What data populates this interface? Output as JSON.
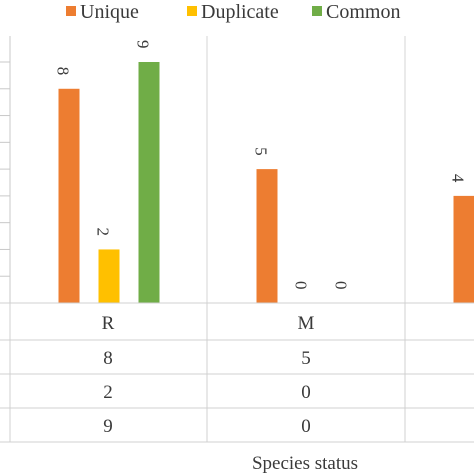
{
  "chart_data": {
    "type": "bar",
    "xlabel": "Species status",
    "categories": [
      "R",
      "M",
      ""
    ],
    "series": [
      {
        "name": "Unique",
        "color": "#ED7D31",
        "values": [
          8,
          5,
          4
        ]
      },
      {
        "name": "Duplicate",
        "color": "#FFC000",
        "values": [
          2,
          0,
          null
        ]
      },
      {
        "name": "Common",
        "color": "#70AD47",
        "values": [
          9,
          0,
          null
        ]
      }
    ],
    "ylim": [
      0,
      9
    ],
    "grid": true,
    "legend": "top",
    "data_table": {
      "rows": [
        [
          "8",
          "5",
          ""
        ],
        [
          "2",
          "0",
          ""
        ],
        [
          "9",
          "0",
          ""
        ]
      ]
    }
  }
}
